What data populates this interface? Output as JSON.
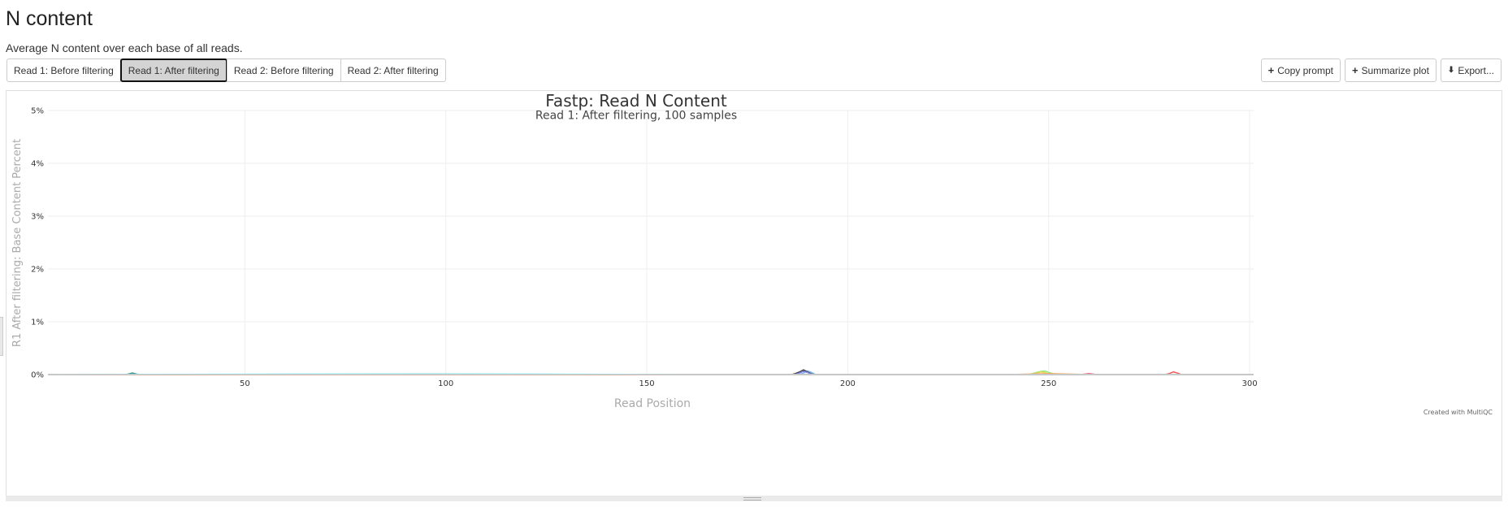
{
  "section": {
    "title": "N content",
    "description": "Average N content over each base of all reads."
  },
  "tabs": [
    {
      "label": "Read 1: Before filtering",
      "active": false
    },
    {
      "label": "Read 1: After filtering",
      "active": true
    },
    {
      "label": "Read 2: Before filtering",
      "active": false
    },
    {
      "label": "Read 2: After filtering",
      "active": false
    }
  ],
  "actions": {
    "copy_prompt": "Copy prompt",
    "summarize_plot": "Summarize plot",
    "export": "Export..."
  },
  "footer": {
    "credit": "Created with MultiQC"
  },
  "colors": {
    "grid": "#eeeeee",
    "axis_title": "#aaaaaa",
    "series": [
      "#7cb5ec",
      "#434348",
      "#90ed7d",
      "#f7a35c",
      "#8085e9",
      "#f15c80",
      "#e4d354",
      "#2b908f",
      "#f45b5b",
      "#91e8e1"
    ]
  },
  "chart_data": {
    "type": "line",
    "title": "Fastp: Read N Content",
    "subtitle": "Read 1: After filtering, 100 samples",
    "xlabel": "Read Position",
    "ylabel": "R1 After filtering: Base Content Percent",
    "xlim": [
      1,
      301
    ],
    "ylim": [
      0,
      5
    ],
    "xticks": [
      50,
      100,
      150,
      200,
      250,
      300
    ],
    "yticks": [
      0,
      1,
      2,
      3,
      4,
      5
    ],
    "ytick_labels": [
      "0%",
      "1%",
      "2%",
      "3%",
      "4%",
      "5%"
    ],
    "grid": true,
    "legend": "none",
    "samples": 100,
    "series": [
      {
        "color": "#2b908f",
        "points": [
          [
            1,
            0
          ],
          [
            20,
            0
          ],
          [
            21,
            0.01
          ],
          [
            22,
            0.03
          ],
          [
            23,
            0.01
          ],
          [
            24,
            0
          ],
          [
            100,
            0.01
          ],
          [
            150,
            0
          ],
          [
            200,
            0
          ],
          [
            301,
            0
          ]
        ]
      },
      {
        "color": "#7cb5ec",
        "points": [
          [
            1,
            0
          ],
          [
            100,
            0
          ],
          [
            188,
            0
          ],
          [
            189,
            0.03
          ],
          [
            190,
            0.07
          ],
          [
            191,
            0.04
          ],
          [
            192,
            0
          ],
          [
            250,
            0
          ],
          [
            301,
            0
          ]
        ]
      },
      {
        "color": "#434348",
        "points": [
          [
            1,
            0
          ],
          [
            186,
            0
          ],
          [
            187,
            0.02
          ],
          [
            188,
            0.05
          ],
          [
            189,
            0.09
          ],
          [
            190,
            0.05
          ],
          [
            191,
            0.01
          ],
          [
            192,
            0
          ],
          [
            301,
            0
          ]
        ]
      },
      {
        "color": "#8085e9",
        "points": [
          [
            1,
            0
          ],
          [
            187,
            0
          ],
          [
            188,
            0.03
          ],
          [
            189,
            0.06
          ],
          [
            190,
            0.04
          ],
          [
            191,
            0
          ],
          [
            301,
            0
          ]
        ]
      },
      {
        "color": "#90ed7d",
        "points": [
          [
            1,
            0
          ],
          [
            245,
            0
          ],
          [
            246,
            0.02
          ],
          [
            247,
            0.04
          ],
          [
            248,
            0.06
          ],
          [
            249,
            0.07
          ],
          [
            250,
            0.04
          ],
          [
            251,
            0.02
          ],
          [
            252,
            0
          ],
          [
            301,
            0
          ]
        ]
      },
      {
        "color": "#e4d354",
        "points": [
          [
            1,
            0
          ],
          [
            246,
            0
          ],
          [
            247,
            0.03
          ],
          [
            248,
            0.05
          ],
          [
            249,
            0.04
          ],
          [
            250,
            0.01
          ],
          [
            251,
            0
          ],
          [
            301,
            0
          ]
        ]
      },
      {
        "color": "#f15c80",
        "points": [
          [
            1,
            0
          ],
          [
            258,
            0
          ],
          [
            259,
            0.01
          ],
          [
            260,
            0.02
          ],
          [
            261,
            0.01
          ],
          [
            262,
            0
          ],
          [
            301,
            0
          ]
        ]
      },
      {
        "color": "#f45b5b",
        "points": [
          [
            1,
            0
          ],
          [
            279,
            0
          ],
          [
            280,
            0.02
          ],
          [
            281,
            0.05
          ],
          [
            282,
            0.03
          ],
          [
            283,
            0
          ],
          [
            301,
            0
          ]
        ]
      },
      {
        "color": "#f7a35c",
        "points": [
          [
            1,
            0
          ],
          [
            240,
            0
          ],
          [
            250,
            0.02
          ],
          [
            255,
            0.01
          ],
          [
            260,
            0
          ],
          [
            301,
            0
          ]
        ]
      },
      {
        "color": "#91e8e1",
        "points": [
          [
            1,
            0
          ],
          [
            60,
            0.01
          ],
          [
            120,
            0.01
          ],
          [
            160,
            0
          ],
          [
            301,
            0
          ]
        ]
      }
    ]
  }
}
